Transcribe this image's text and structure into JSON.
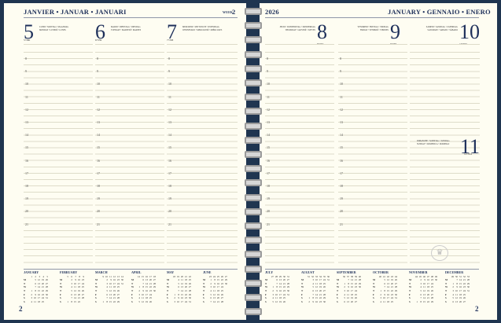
{
  "left": {
    "month": "JANVIER • JANUAR • JANUARI",
    "week_label": "WEEK",
    "week": "2",
    "page": "2"
  },
  "right": {
    "year": "2026",
    "month": "JANUARY • GENNAIO • ENERO",
    "page": "2"
  },
  "days": [
    {
      "num": "5",
      "doy": "5•360",
      "names": "LUNDI • MONTAG • MAANDAG\nMONDAY • LUNEDÌ • LUNES"
    },
    {
      "num": "6",
      "doy": "6•359",
      "names": "MARDI • DIENSTAG • DINSDAG\nTUESDAY • MARTEDÌ • MARTES"
    },
    {
      "num": "7",
      "doy": "7•358",
      "names": "MERCREDI • MITTWOCH • WOENSDAG\nWEDNESDAY • MERCOLEDÌ • MIÉRCOLES"
    },
    {
      "num": "8",
      "doy": "8•357",
      "names": "JEUDI • DONNERSTAG • DONDERDAG\nTHURSDAY • GIOVEDÌ • JUEVES"
    },
    {
      "num": "9",
      "doy": "9•356",
      "names": "VENDREDI • FREITAG • VRIJDAG\nFRIDAY • VENERDÌ • VIERNES"
    },
    {
      "num": "10",
      "doy": "10•355",
      "names": "SAMEDI • SAMSTAG • ZATERDAG\nSATURDAY • SABATO • SÁBADO"
    },
    {
      "num": "11",
      "doy": "11•354",
      "names": "DIMANCHE • SONNTAG • ZONDAG\nSUNDAY • DOMENICA • DOMINGO"
    }
  ],
  "hours": [
    "8",
    "9",
    "10",
    "11",
    "12",
    "13",
    "14",
    "15",
    "16",
    "17",
    "18",
    "19",
    "20",
    "21"
  ],
  "mini_calendar": {
    "year": 2026,
    "weekday_initials": [
      "M",
      "T",
      "W",
      "T",
      "F",
      "S",
      "S"
    ],
    "months": [
      "JANUARY",
      "FEBRUARY",
      "MARCH",
      "APRIL",
      "MAY",
      "JUNE",
      "JULY",
      "AUGUST",
      "SEPTEMBER",
      "OCTOBER",
      "NOVEMBER",
      "DECEMBER"
    ]
  },
  "colors": {
    "border": "#1f3550",
    "paper": "#fefdf2",
    "ink": "#1d2f5a"
  }
}
